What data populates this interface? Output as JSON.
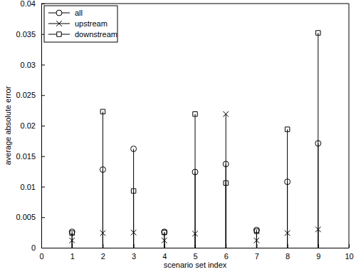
{
  "chart_data": {
    "type": "stem",
    "x_label": "scenario set index",
    "y_label": "average absolute error",
    "x": [
      1,
      2,
      3,
      4,
      5,
      6,
      7,
      8,
      9
    ],
    "series": [
      {
        "name": "all",
        "color": "#000000",
        "marker": "circle",
        "line_style": "solid",
        "values": [
          0.0026,
          0.0128,
          0.0162,
          0.0026,
          0.0124,
          0.0137,
          0.0029,
          0.0108,
          0.0171
        ]
      },
      {
        "name": "upstream",
        "color": "#000000",
        "marker": "x",
        "line_style": "solid",
        "values": [
          0.0012,
          0.0024,
          0.0025,
          0.0012,
          0.0023,
          0.0219,
          0.0012,
          0.0024,
          0.003
        ]
      },
      {
        "name": "downstream",
        "color": "#000000",
        "marker": "square",
        "line_style": "solid",
        "values": [
          0.0024,
          0.0223,
          0.0093,
          0.0025,
          0.0219,
          0.0106,
          0.0027,
          0.0194,
          0.0352
        ]
      }
    ],
    "xlim": [
      0,
      10
    ],
    "xticks": [
      0,
      1,
      2,
      3,
      4,
      5,
      6,
      7,
      8,
      9,
      10
    ],
    "ylim": [
      0,
      0.04
    ],
    "yticks": [
      0,
      0.005,
      0.01,
      0.015,
      0.02,
      0.025,
      0.03,
      0.035,
      0.04
    ],
    "grid": false,
    "legend": "upper left"
  }
}
